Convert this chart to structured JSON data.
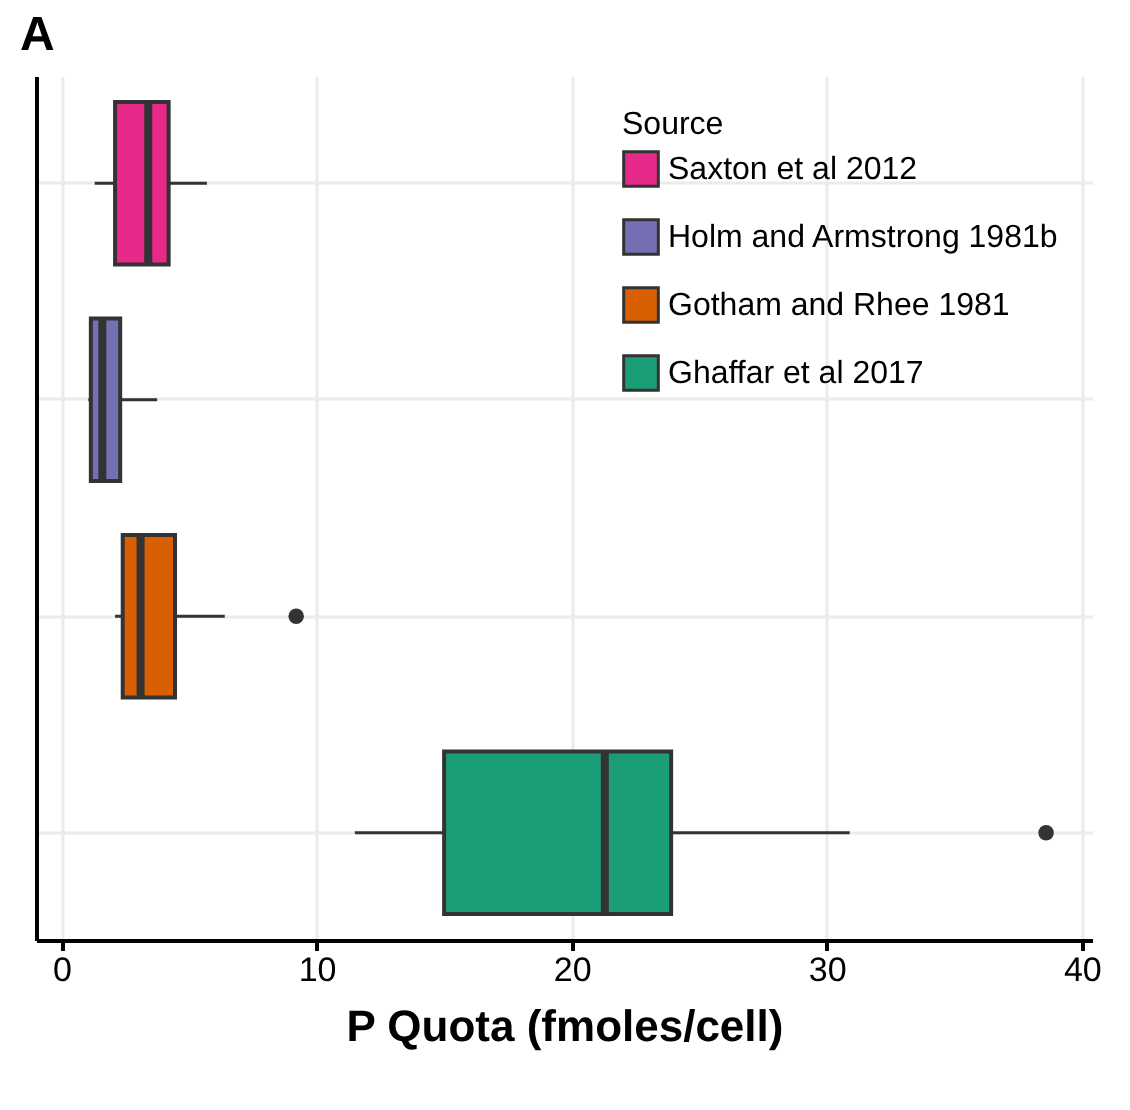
{
  "chart_data": {
    "type": "box",
    "title": "A",
    "xlabel": "P Quota (fmoles/cell)",
    "legend_title": "Source",
    "orientation": "horizontal",
    "categories": [
      null,
      null,
      null,
      null
    ],
    "xlim": [
      -1,
      40.4
    ],
    "xticks": [
      0,
      10,
      20,
      30,
      40
    ],
    "grid": true,
    "legend": "top right",
    "tick_labels": "x",
    "series": [
      {
        "name": "Saxton et al 2012",
        "color": "#e7298a",
        "boxes": [
          {
            "low": 1.3,
            "q1": 2.1,
            "median": 3.4,
            "q3": 4.2,
            "high": 5.7
          },
          null,
          null,
          null
        ]
      },
      {
        "name": "Holm and Armstrong 1981b",
        "color": "#7570b3",
        "boxes": [
          null,
          {
            "low": 1.05,
            "q1": 1.15,
            "median": 1.6,
            "q3": 2.3,
            "high": 3.75
          },
          null,
          null
        ]
      },
      {
        "name": "Gotham and Rhee 1981",
        "color": "#d95f02",
        "boxes": [
          null,
          null,
          {
            "low": 2.1,
            "q1": 2.4,
            "median": 3.1,
            "q3": 4.45,
            "high": 6.4,
            "outliers": [
              9.2
            ]
          },
          null
        ]
      },
      {
        "name": "Ghaffar et al 2017",
        "color": "#1b9e77",
        "boxes": [
          null,
          null,
          null,
          {
            "low": 11.5,
            "q1": 15.0,
            "median": 21.3,
            "q3": 23.9,
            "high": 30.9,
            "outliers": [
              38.6
            ]
          }
        ]
      }
    ]
  }
}
